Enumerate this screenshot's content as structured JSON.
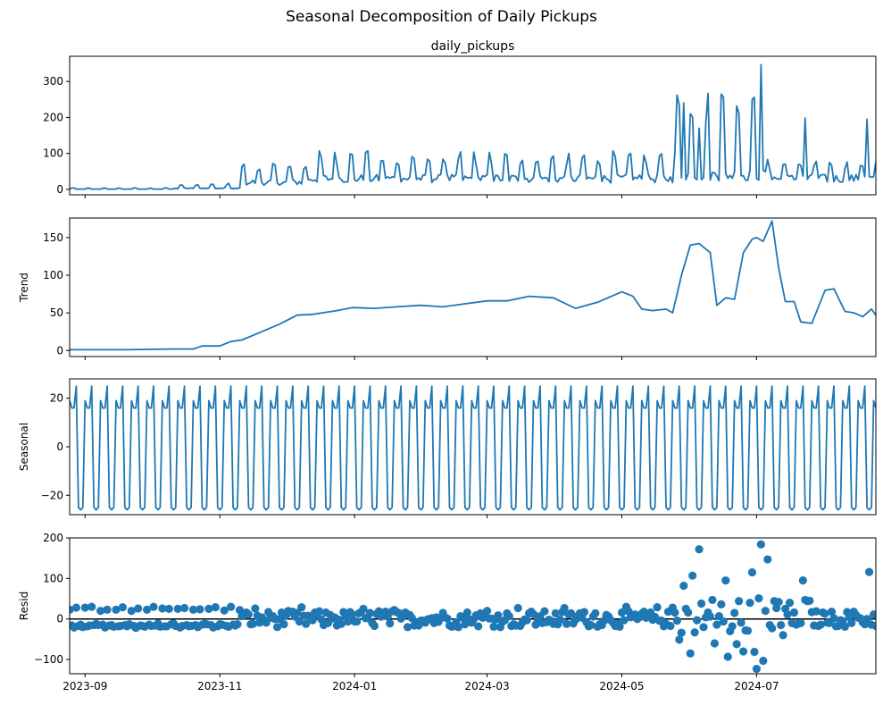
{
  "figure": {
    "title": "Seasonal Decomposition of Daily Pickups",
    "xlim": [
      "2023-08-25",
      "2024-08-24"
    ],
    "x_ticks": [
      "2023-09",
      "2023-11",
      "2024-01",
      "2024-03",
      "2024-05",
      "2024-07"
    ]
  },
  "chart_data": [
    {
      "type": "line",
      "title": "daily_pickups",
      "ylabel": "",
      "ylim": [
        -15,
        370
      ],
      "y_ticks": [
        0,
        100,
        200,
        300
      ],
      "color": "#1f77b4",
      "segments": [
        {
          "start": "2023-08-25",
          "end": "2023-10-10",
          "base": 1,
          "weekend": 4
        },
        {
          "start": "2023-10-11",
          "end": "2023-11-10",
          "base": 3,
          "weekend": 14
        },
        {
          "start": "2023-11-11",
          "end": "2023-12-10",
          "base": 20,
          "weekend": 60
        },
        {
          "start": "2023-12-11",
          "end": "2024-05-25",
          "base": 30,
          "weekend": 90
        },
        {
          "start": "2024-05-26",
          "end": "2024-07-05",
          "base": 40,
          "weekend": 230
        },
        {
          "start": "2024-07-06",
          "end": "2024-08-24",
          "base": 30,
          "weekend": 70
        }
      ],
      "peaks": [
        {
          "date": "2024-05-27",
          "value": 234
        },
        {
          "date": "2024-05-29",
          "value": 240
        },
        {
          "date": "2024-06-01",
          "value": 210
        },
        {
          "date": "2024-06-05",
          "value": 170
        },
        {
          "date": "2024-06-15",
          "value": 265
        },
        {
          "date": "2024-06-22",
          "value": 232
        },
        {
          "date": "2024-06-29",
          "value": 250
        },
        {
          "date": "2024-07-03",
          "value": 347
        },
        {
          "date": "2024-07-23",
          "value": 198
        },
        {
          "date": "2024-08-20",
          "value": 195
        }
      ]
    },
    {
      "type": "line",
      "title": "",
      "ylabel": "Trend",
      "ylim": [
        -8,
        176
      ],
      "y_ticks": [
        0,
        50,
        100,
        150
      ],
      "color": "#1f77b4",
      "points": [
        [
          "2023-08-25",
          1
        ],
        [
          "2023-09-20",
          1
        ],
        [
          "2023-10-10",
          2
        ],
        [
          "2023-10-20",
          2
        ],
        [
          "2023-10-24",
          6
        ],
        [
          "2023-11-01",
          6
        ],
        [
          "2023-11-06",
          12
        ],
        [
          "2023-11-11",
          14
        ],
        [
          "2023-11-20",
          25
        ],
        [
          "2023-11-28",
          35
        ],
        [
          "2023-12-06",
          47
        ],
        [
          "2023-12-13",
          48
        ],
        [
          "2023-12-24",
          53
        ],
        [
          "2023-12-31",
          57
        ],
        [
          "2024-01-10",
          56
        ],
        [
          "2024-01-20",
          58
        ],
        [
          "2024-01-31",
          60
        ],
        [
          "2024-02-10",
          58
        ],
        [
          "2024-02-20",
          62
        ],
        [
          "2024-03-01",
          66
        ],
        [
          "2024-03-10",
          66
        ],
        [
          "2024-03-20",
          72
        ],
        [
          "2024-03-31",
          70
        ],
        [
          "2024-04-10",
          56
        ],
        [
          "2024-04-20",
          64
        ],
        [
          "2024-05-01",
          78
        ],
        [
          "2024-05-06",
          72
        ],
        [
          "2024-05-10",
          55
        ],
        [
          "2024-05-15",
          53
        ],
        [
          "2024-05-21",
          55
        ],
        [
          "2024-05-24",
          50
        ],
        [
          "2024-05-28",
          100
        ],
        [
          "2024-06-01",
          140
        ],
        [
          "2024-06-05",
          142
        ],
        [
          "2024-06-10",
          130
        ],
        [
          "2024-06-13",
          60
        ],
        [
          "2024-06-17",
          70
        ],
        [
          "2024-06-21",
          68
        ],
        [
          "2024-06-25",
          130
        ],
        [
          "2024-06-29",
          148
        ],
        [
          "2024-07-01",
          150
        ],
        [
          "2024-07-04",
          145
        ],
        [
          "2024-07-08",
          172
        ],
        [
          "2024-07-11",
          110
        ],
        [
          "2024-07-14",
          65
        ],
        [
          "2024-07-18",
          65
        ],
        [
          "2024-07-21",
          38
        ],
        [
          "2024-07-26",
          36
        ],
        [
          "2024-08-01",
          80
        ],
        [
          "2024-08-05",
          82
        ],
        [
          "2024-08-10",
          52
        ],
        [
          "2024-08-14",
          50
        ],
        [
          "2024-08-18",
          45
        ],
        [
          "2024-08-22",
          55
        ],
        [
          "2024-08-24",
          47
        ]
      ]
    },
    {
      "type": "line",
      "title": "",
      "ylabel": "Seasonal",
      "ylim": [
        -28,
        28
      ],
      "y_ticks": [
        -20,
        0,
        20
      ],
      "color": "#1f77b4",
      "weekly_pattern": [
        16,
        25,
        -25,
        -26,
        -25,
        19,
        16
      ]
    },
    {
      "type": "scatter",
      "title": "",
      "ylabel": "Resid",
      "ylim": [
        -135,
        200
      ],
      "y_ticks": [
        -100,
        0,
        100,
        200
      ],
      "color": "#1f77b4",
      "zero_line": true,
      "weekly_pattern": [
        -18,
        27,
        -15,
        -14,
        -16,
        24,
        -18
      ],
      "outliers": [
        {
          "date": "2024-06-05",
          "value": 172
        },
        {
          "date": "2024-07-03",
          "value": 184
        },
        {
          "date": "2024-07-06",
          "value": 147
        },
        {
          "date": "2024-06-29",
          "value": 115
        },
        {
          "date": "2024-06-17",
          "value": 95
        },
        {
          "date": "2024-07-22",
          "value": 95
        },
        {
          "date": "2024-08-21",
          "value": 116
        },
        {
          "date": "2024-06-02",
          "value": 107
        },
        {
          "date": "2024-05-29",
          "value": 82
        },
        {
          "date": "2024-07-01",
          "value": -123
        },
        {
          "date": "2024-07-04",
          "value": -103
        },
        {
          "date": "2024-06-18",
          "value": -93
        },
        {
          "date": "2024-06-30",
          "value": -81
        },
        {
          "date": "2024-06-01",
          "value": -85
        },
        {
          "date": "2024-06-25",
          "value": -80
        },
        {
          "date": "2024-06-12",
          "value": -60
        },
        {
          "date": "2024-06-22",
          "value": -62
        },
        {
          "date": "2024-07-13",
          "value": -40
        }
      ]
    }
  ]
}
